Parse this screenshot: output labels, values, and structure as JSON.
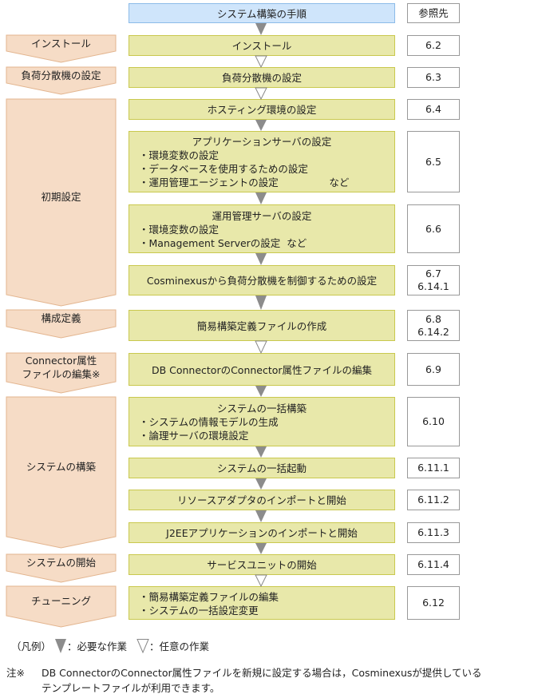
{
  "header": {
    "title": "システム構築の手順",
    "ref_title": "参照先"
  },
  "phases": [
    {
      "label": [
        "インストール"
      ]
    },
    {
      "label": [
        "負荷分散機の設定"
      ]
    },
    {
      "label": [
        "初期設定"
      ]
    },
    {
      "label": [
        "構成定義"
      ]
    },
    {
      "label": [
        "Connector属性",
        "ファイルの編集※"
      ]
    },
    {
      "label": [
        "システムの構築"
      ]
    },
    {
      "label": [
        "システムの開始"
      ]
    },
    {
      "label": [
        "チューニング"
      ]
    }
  ],
  "steps": [
    {
      "title": "インストール",
      "bullets": [],
      "ref": [
        "6.2"
      ],
      "arrow_after": "optional"
    },
    {
      "title": "負荷分散機の設定",
      "bullets": [],
      "ref": [
        "6.3"
      ],
      "arrow_after": "optional"
    },
    {
      "title": "ホスティング環境の設定",
      "bullets": [],
      "ref": [
        "6.4"
      ],
      "arrow_after": "required"
    },
    {
      "title": "アプリケーションサーバの設定",
      "bullets": [
        "・環境変数の設定",
        "・データベースを使用するための設定",
        "・運用管理エージェントの設定                など"
      ],
      "ref": [
        "6.5"
      ],
      "arrow_after": "required"
    },
    {
      "title": "運用管理サーバの設定",
      "bullets": [
        "・環境変数の設定",
        "・Management Serverの設定  など"
      ],
      "ref": [
        "6.6"
      ],
      "arrow_after": "required"
    },
    {
      "title": "Cosminexusから負荷分散機を制御するための設定",
      "bullets": [],
      "ref": [
        "6.7",
        "6.14.1"
      ],
      "arrow_after": "required"
    },
    {
      "title": "簡易構築定義ファイルの作成",
      "bullets": [],
      "ref": [
        "6.8",
        "6.14.2"
      ],
      "arrow_after": "optional"
    },
    {
      "title": "DB ConnectorのConnector属性ファイルの編集",
      "bullets": [],
      "ref": [
        "6.9"
      ],
      "arrow_after": "required"
    },
    {
      "title": "システムの一括構築",
      "bullets": [
        "・システムの情報モデルの生成",
        "・論理サーバの環境設定"
      ],
      "ref": [
        "6.10"
      ],
      "arrow_after": "required"
    },
    {
      "title": "システムの一括起動",
      "bullets": [],
      "ref": [
        "6.11.1"
      ],
      "arrow_after": "required"
    },
    {
      "title": "リソースアダプタのインポートと開始",
      "bullets": [],
      "ref": [
        "6.11.2"
      ],
      "arrow_after": "required"
    },
    {
      "title": "J2EEアプリケーションのインポートと開始",
      "bullets": [],
      "ref": [
        "6.11.3"
      ],
      "arrow_after": "required"
    },
    {
      "title": "サービスユニットの開始",
      "bullets": [],
      "ref": [
        "6.11.4"
      ],
      "arrow_after": "optional"
    },
    {
      "title": "",
      "bullets": [
        "・簡易構築定義ファイルの編集",
        "・システムの一括設定変更"
      ],
      "ref": [
        "6.12"
      ],
      "arrow_after": null
    }
  ],
  "legend": {
    "prefix": "（凡例）",
    "required": "：必要な作業",
    "optional": "：任意の作業"
  },
  "note": {
    "mark": "注※",
    "lines": [
      "DB ConnectorのConnector属性ファイルを新規に設定する場合は，Cosminexusが提供している",
      "テンプレートファイルが利用できます。"
    ]
  },
  "colors": {
    "header_fill": "#cfe5fb",
    "step_fill": "#e8e8aa",
    "phase_fill": "#f6dcc6",
    "required_arrow": "#8c8c8c"
  }
}
